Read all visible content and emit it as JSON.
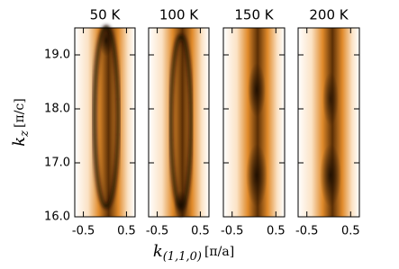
{
  "chart_data": [
    {
      "type": "heatmap",
      "title": "50 K",
      "xlim": [
        -0.7,
        0.7
      ],
      "xticks": [
        -0.5,
        0.5
      ],
      "ylim": [
        16,
        19.5
      ],
      "yticks": [
        {
          "value": 16,
          "label": "16.0"
        },
        {
          "value": 17,
          "label": "17.0"
        },
        {
          "value": 18,
          "label": "18.0"
        },
        {
          "value": 19,
          "label": "19.0"
        }
      ],
      "xlabel": {
        "symbol": "k",
        "subscript": "(1,1,0)",
        "unit": "[π/a]"
      },
      "ylabel": {
        "symbol": "k",
        "subscript": "z",
        "unit": "[π/c]"
      }
    },
    {
      "type": "heatmap",
      "title": "100 K",
      "xlim": [
        -0.7,
        0.7
      ],
      "xticks": [
        -0.5,
        0.5
      ],
      "ylim": [
        16,
        19.5
      ],
      "yticks": [
        {
          "value": 16,
          "label": "16.0"
        },
        {
          "value": 17,
          "label": "17.0"
        },
        {
          "value": 18,
          "label": "18.0"
        },
        {
          "value": 19,
          "label": "19.0"
        }
      ]
    },
    {
      "type": "heatmap",
      "title": "150 K",
      "xlim": [
        -0.7,
        0.7
      ],
      "xticks": [
        -0.5,
        0.5
      ],
      "ylim": [
        16,
        19.5
      ],
      "yticks": [
        {
          "value": 16,
          "label": "16.0"
        },
        {
          "value": 17,
          "label": "17.0"
        },
        {
          "value": 18,
          "label": "18.0"
        },
        {
          "value": 19,
          "label": "19.0"
        }
      ]
    },
    {
      "type": "heatmap",
      "title": "200 K",
      "xlim": [
        -0.7,
        0.7
      ],
      "xticks": [
        -0.5,
        0.5
      ],
      "ylim": [
        16,
        19.5
      ],
      "yticks": [
        {
          "value": 16,
          "label": "16.0"
        },
        {
          "value": 17,
          "label": "17.0"
        },
        {
          "value": 18,
          "label": "18.0"
        },
        {
          "value": 19,
          "label": "19.0"
        }
      ]
    }
  ]
}
